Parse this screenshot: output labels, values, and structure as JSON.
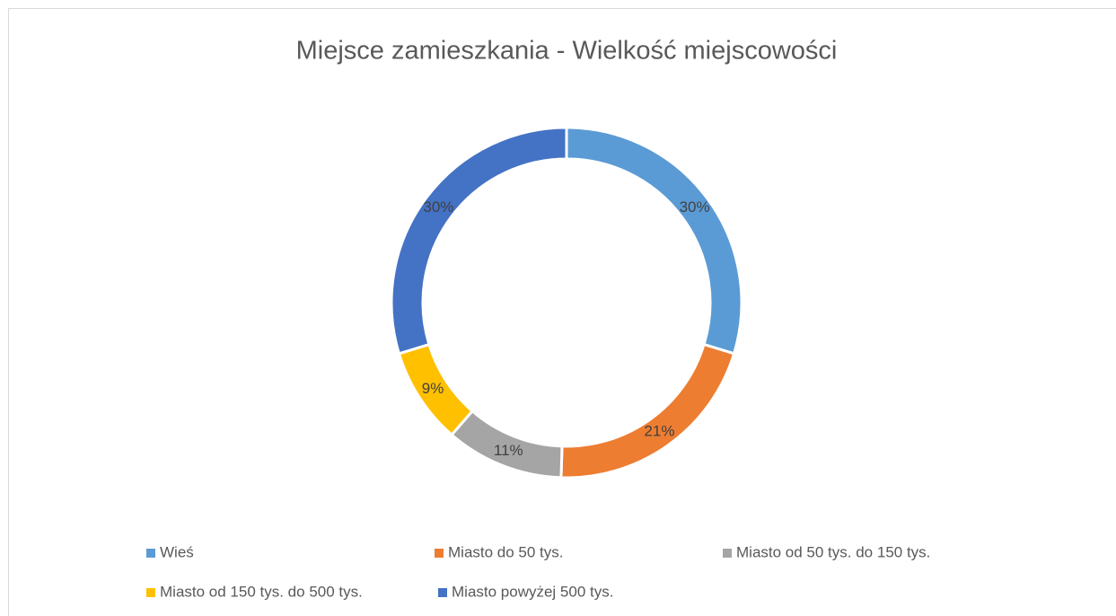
{
  "chart_data": {
    "type": "donut",
    "title": "Miejsce zamieszkania - Wielkość miejscowości",
    "categories": [
      "Wieś",
      "Miasto do 50 tys.",
      "Miasto od 50 tys. do 150 tys.",
      "Miasto od 150 tys. do 500 tys.",
      "Miasto powyżej 500 tys."
    ],
    "values": [
      30,
      21,
      11,
      9,
      30
    ],
    "value_labels": [
      "30%",
      "21%",
      "11%",
      "9%",
      "30%"
    ],
    "colors": [
      "#5b9bd5",
      "#ed7d31",
      "#a5a5a5",
      "#ffc000",
      "#4472c4"
    ],
    "legend": "bottom"
  }
}
